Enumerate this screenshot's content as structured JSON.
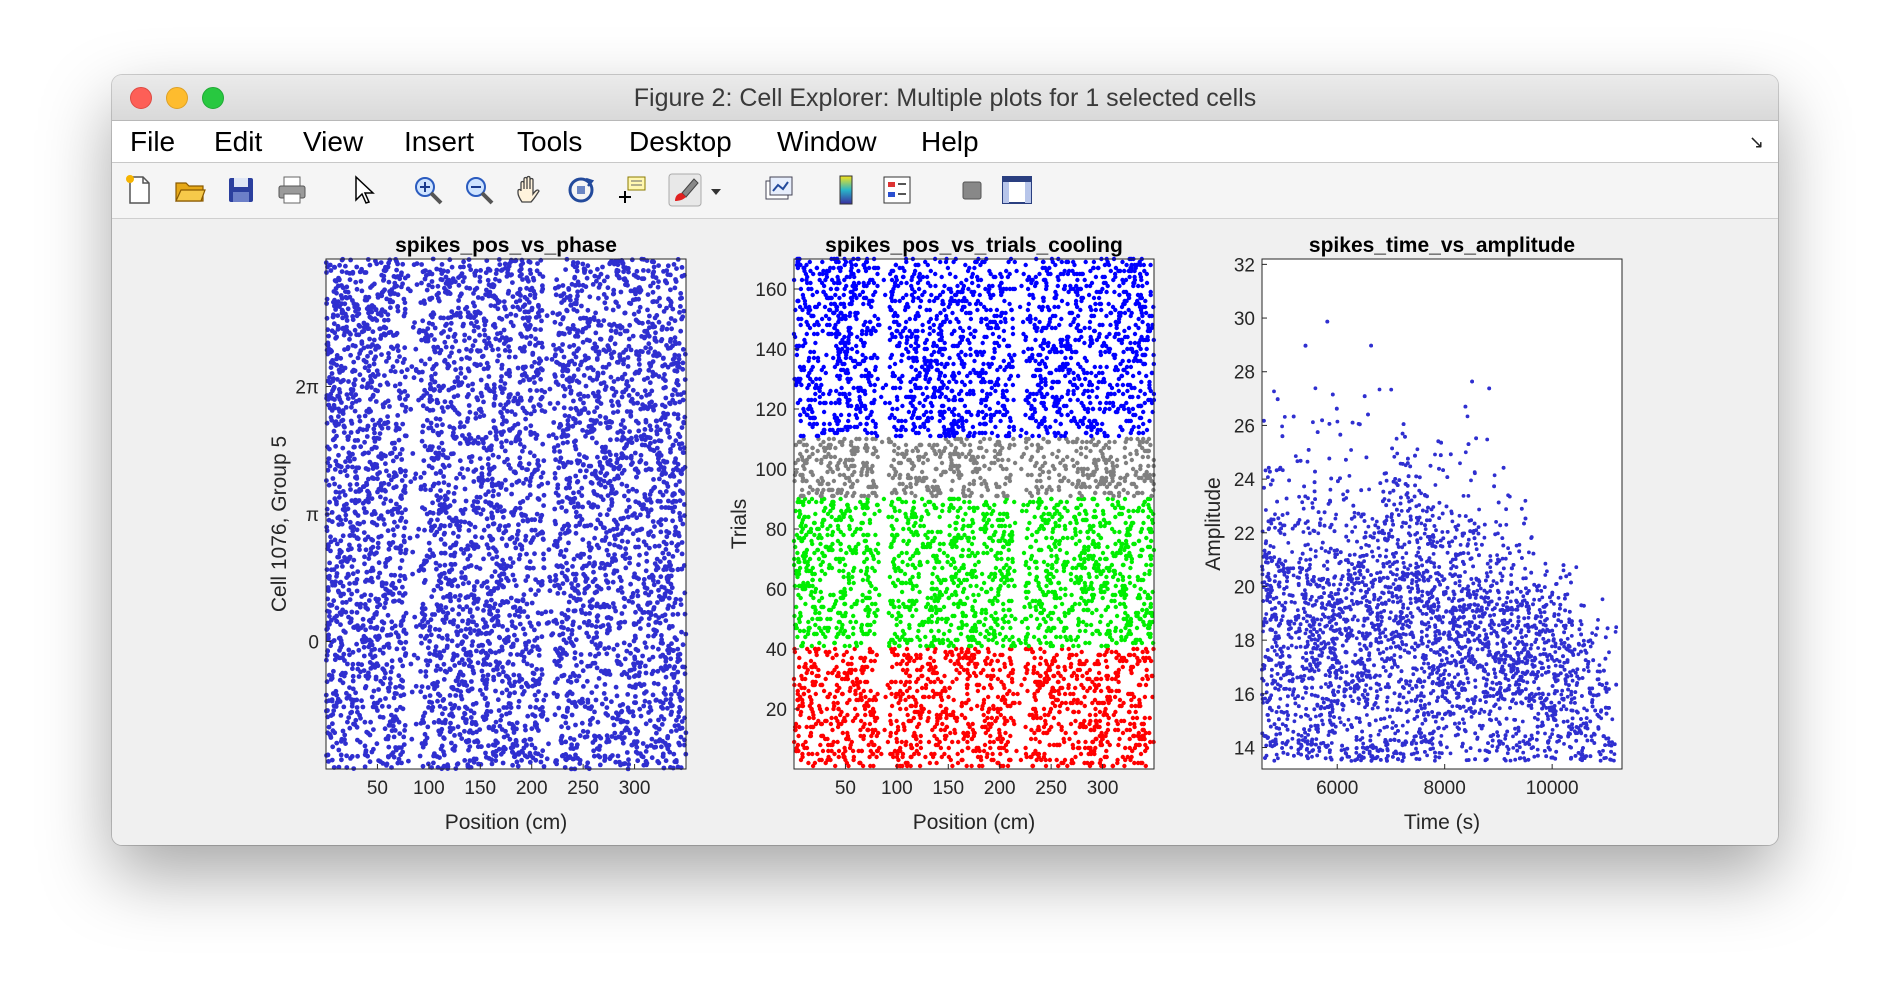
{
  "window": {
    "title": "Figure 2: Cell Explorer: Multiple plots for 1 selected cells"
  },
  "menu": {
    "items": [
      "File",
      "Edit",
      "View",
      "Insert",
      "Tools",
      "Desktop",
      "Window",
      "Help"
    ],
    "dock_arrow": "↘"
  },
  "toolbar": {
    "icons": [
      "new-figure-icon",
      "open-file-icon",
      "save-icon",
      "print-icon",
      "pointer-icon",
      "zoom-in-icon",
      "zoom-out-icon",
      "pan-icon",
      "rotate-3d-icon",
      "data-cursor-icon",
      "brush-icon",
      "brush-dropdown-icon",
      "link-plot-icon",
      "colorbar-icon",
      "legend-icon",
      "hide-plot-tools-icon",
      "show-plot-tools-icon"
    ]
  },
  "colors": {
    "blue": "#2f2fd0",
    "gray": "#808080",
    "green": "#00ee00",
    "red": "#ff0000"
  },
  "chart_data": [
    {
      "type": "scatter",
      "title": "spikes_pos_vs_phase",
      "xlabel": "Position (cm)",
      "ylabel": "Cell 1076, Group 5",
      "xlim": [
        0,
        350
      ],
      "xticks": [
        50,
        100,
        150,
        200,
        250,
        300
      ],
      "xtick_labels": [
        "50",
        "100",
        "150",
        "200",
        "250",
        "300"
      ],
      "ylim": [
        -3.14159,
        9.42478
      ],
      "yticks": [
        0,
        3.14159,
        6.28318
      ],
      "ytick_labels": [
        "0",
        "π",
        "2π"
      ],
      "series": [
        {
          "color": "#2f2fd0",
          "x_range": [
            0,
            350
          ],
          "y_range": [
            -3.14159,
            9.42478
          ],
          "sparse_x_bands": [
            [
              78,
              92
            ],
            [
              212,
              222
            ]
          ]
        }
      ]
    },
    {
      "type": "scatter",
      "title": "spikes_pos_vs_trials_cooling",
      "xlabel": "Position (cm)",
      "ylabel": "Trials",
      "xlim": [
        0,
        350
      ],
      "xticks": [
        50,
        100,
        150,
        200,
        250,
        300
      ],
      "xtick_labels": [
        "50",
        "100",
        "150",
        "200",
        "250",
        "300"
      ],
      "ylim": [
        0,
        170
      ],
      "yticks": [
        20,
        40,
        60,
        80,
        100,
        120,
        140,
        160
      ],
      "ytick_labels": [
        "20",
        "40",
        "60",
        "80",
        "100",
        "120",
        "140",
        "160"
      ],
      "series": [
        {
          "trials": [
            1,
            40
          ],
          "color": "#ff0000"
        },
        {
          "trials": [
            41,
            90
          ],
          "color": "#00ee00"
        },
        {
          "trials": [
            91,
            110
          ],
          "color": "#808080"
        },
        {
          "trials": [
            111,
            170
          ],
          "color": "#0000ff"
        }
      ]
    },
    {
      "type": "scatter",
      "title": "spikes_time_vs_amplitude",
      "xlabel": "Time (s)",
      "ylabel": "Amplitude",
      "xlim": [
        4600,
        11300
      ],
      "xticks": [
        6000,
        8000,
        10000
      ],
      "xtick_labels": [
        "6000",
        "8000",
        "10000"
      ],
      "ylim": [
        13.2,
        32.2
      ],
      "yticks": [
        14,
        16,
        18,
        20,
        22,
        24,
        26,
        28,
        30,
        32
      ],
      "ytick_labels": [
        "14",
        "16",
        "18",
        "20",
        "22",
        "24",
        "26",
        "28",
        "30",
        "32"
      ],
      "series": [
        {
          "color": "#2f2fd0",
          "x_range": [
            4600,
            11300
          ],
          "y_range": [
            13.2,
            32
          ]
        }
      ]
    }
  ]
}
